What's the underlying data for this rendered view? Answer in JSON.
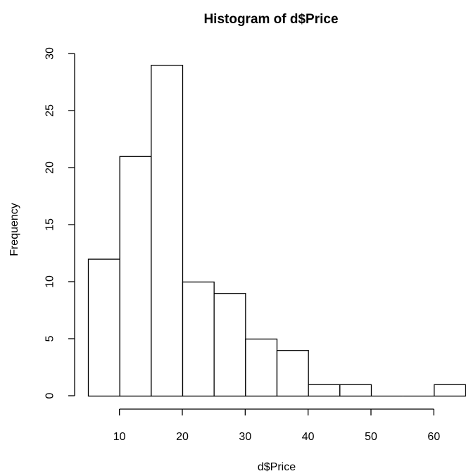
{
  "chart_data": {
    "type": "histogram",
    "title": "Histogram of d$Price",
    "xlabel": "d$Price",
    "ylabel": "Frequency",
    "bins": [
      {
        "start": 5,
        "end": 10,
        "count": 12
      },
      {
        "start": 10,
        "end": 15,
        "count": 21
      },
      {
        "start": 15,
        "end": 20,
        "count": 29
      },
      {
        "start": 20,
        "end": 25,
        "count": 10
      },
      {
        "start": 25,
        "end": 30,
        "count": 9
      },
      {
        "start": 30,
        "end": 35,
        "count": 5
      },
      {
        "start": 35,
        "end": 40,
        "count": 4
      },
      {
        "start": 40,
        "end": 45,
        "count": 1
      },
      {
        "start": 45,
        "end": 50,
        "count": 1
      },
      {
        "start": 50,
        "end": 55,
        "count": 0
      },
      {
        "start": 55,
        "end": 60,
        "count": 0
      },
      {
        "start": 60,
        "end": 65,
        "count": 1
      }
    ],
    "xlim": [
      5,
      65
    ],
    "ylim": [
      0,
      30
    ],
    "x_axis_range": [
      10,
      60
    ],
    "x_ticks": [
      10,
      20,
      30,
      40,
      50,
      60
    ],
    "x_tick_labels": [
      "10",
      "20",
      "30",
      "40",
      "50",
      "60"
    ],
    "y_ticks": [
      0,
      5,
      10,
      15,
      20,
      25,
      30
    ],
    "y_tick_labels": [
      "0",
      "5",
      "10",
      "15",
      "20",
      "25",
      "30"
    ],
    "bar_fill": "#ffffff",
    "bar_stroke": "#000000",
    "grid": false,
    "legend": "none"
  }
}
